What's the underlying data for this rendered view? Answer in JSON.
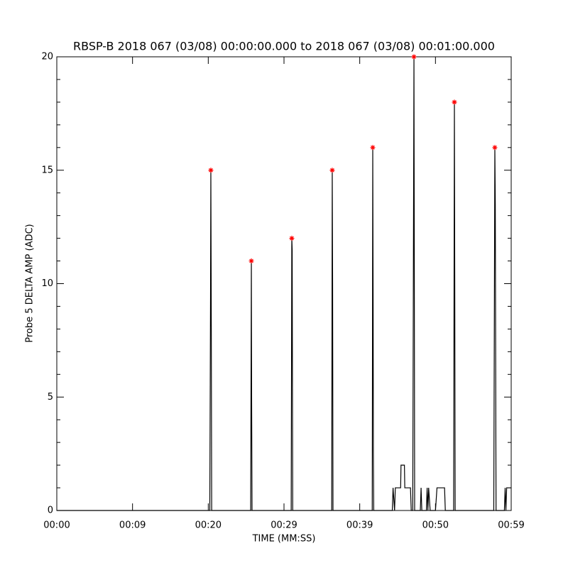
{
  "chart_data": {
    "type": "line",
    "title": "RBSP-B 2018 067 (03/08) 00:00:00.000 to 2018 067 (03/08) 00:01:00.000",
    "xlabel": "TIME (MM:SS)",
    "ylabel": "Probe 5 DELTA AMP (ADC)",
    "xlim": [
      0,
      60
    ],
    "ylim": [
      0,
      20
    ],
    "xticks": [
      {
        "value": 0,
        "label": "00:00"
      },
      {
        "value": 10,
        "label": "00:09"
      },
      {
        "value": 20,
        "label": "00:20"
      },
      {
        "value": 30,
        "label": "00:29"
      },
      {
        "value": 40,
        "label": "00:39"
      },
      {
        "value": 50,
        "label": "00:50"
      },
      {
        "value": 60,
        "label": "00:59"
      }
    ],
    "yticks": [
      0,
      5,
      10,
      15,
      20
    ],
    "grid": false,
    "series": [
      {
        "color": "#000000",
        "style": "line",
        "x": [
          0,
          20.2,
          20.3,
          20.34,
          20.4,
          20.45,
          25.6,
          25.69,
          25.72,
          25.78,
          30.95,
          31.03,
          31.08,
          31.15,
          36.3,
          36.37,
          36.42,
          36.47,
          41.65,
          41.72,
          41.77,
          41.8,
          41.85,
          44.3,
          44.4,
          44.6,
          44.7,
          45.4,
          45.45,
          45.9,
          45.95,
          46.7,
          46.8,
          47.0,
          47.16,
          47.2,
          47.25,
          48.0,
          48.1,
          48.2,
          48.8,
          48.9,
          49.0,
          49.1,
          49.3,
          50.0,
          50.2,
          51.2,
          51.3,
          52.4,
          52.5,
          52.55,
          52.6,
          57.7,
          57.84,
          57.9,
          58.0,
          59.1,
          59.2,
          59.3,
          59.4,
          60
        ],
        "values": [
          0,
          0,
          9.5,
          15,
          8,
          0,
          0,
          11,
          5.5,
          0,
          0,
          12,
          11.5,
          0,
          0,
          15,
          10,
          0,
          0,
          16,
          9,
          2.5,
          0,
          0,
          1,
          0,
          1,
          1,
          2,
          2,
          1,
          1,
          0,
          0,
          20,
          12,
          0,
          0,
          1,
          0,
          0,
          1,
          0,
          1,
          0,
          0,
          1,
          1,
          0,
          0,
          18,
          10,
          0,
          0,
          16,
          13.5,
          0,
          0,
          1,
          0,
          1,
          1
        ]
      },
      {
        "color": "#ff0000",
        "style": "asterisk",
        "x": [
          20.34,
          25.69,
          31.03,
          36.37,
          41.72,
          47.16,
          52.5,
          57.84
        ],
        "values": [
          15,
          11,
          12,
          15,
          16,
          20,
          18,
          16
        ]
      }
    ]
  }
}
